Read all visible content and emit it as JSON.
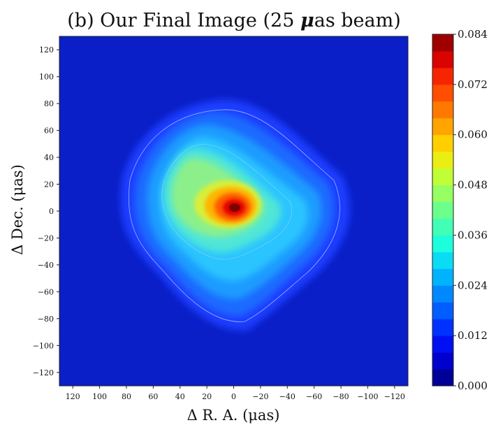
{
  "chart_data": {
    "type": "heatmap",
    "title": "(b) Our Final Image (25 μas beam)",
    "title_parts": {
      "prefix": "(b) Our Final Image (25 ",
      "mu": "μ",
      "suffix": "as beam)"
    },
    "xlabel": "Δ R. A.  (μas)",
    "ylabel": "Δ Dec.  (μas)",
    "xlim": [
      130,
      -130
    ],
    "ylim": [
      -130,
      130
    ],
    "xticks": [
      120,
      100,
      80,
      60,
      40,
      20,
      0,
      -20,
      -40,
      -60,
      -80,
      -100,
      -120
    ],
    "yticks": [
      120,
      100,
      80,
      60,
      40,
      20,
      0,
      -20,
      -40,
      -60,
      -80,
      -100,
      -120
    ],
    "colorbar": {
      "min": 0.0,
      "max": 0.084,
      "levels": 21,
      "ticks": [
        "0.084",
        "0.072",
        "0.060",
        "0.048",
        "0.036",
        "0.024",
        "0.012",
        "0.000"
      ],
      "tick_values": [
        0.084,
        0.072,
        0.06,
        0.048,
        0.036,
        0.024,
        0.012,
        0.0
      ]
    },
    "background_color": "#0a1fc8",
    "components": [
      {
        "name": "core",
        "x": 0,
        "y": 0,
        "peak": 0.084,
        "note": "bright central core"
      },
      {
        "name": "northeast-plateau",
        "x": 30,
        "y": 15,
        "peak": 0.047
      },
      {
        "name": "southwest-extension",
        "x": -50,
        "y": -20,
        "peak": 0.027
      }
    ],
    "colormap": [
      "#00007f",
      "#0000c8",
      "#0014ff",
      "#0050ff",
      "#008cff",
      "#00c8ff",
      "#19ffe0",
      "#4dffaa",
      "#8aff6d",
      "#c4ff33",
      "#ffe500",
      "#ffa800",
      "#ff6c00",
      "#ff2f00",
      "#d60000",
      "#7f0000"
    ]
  }
}
